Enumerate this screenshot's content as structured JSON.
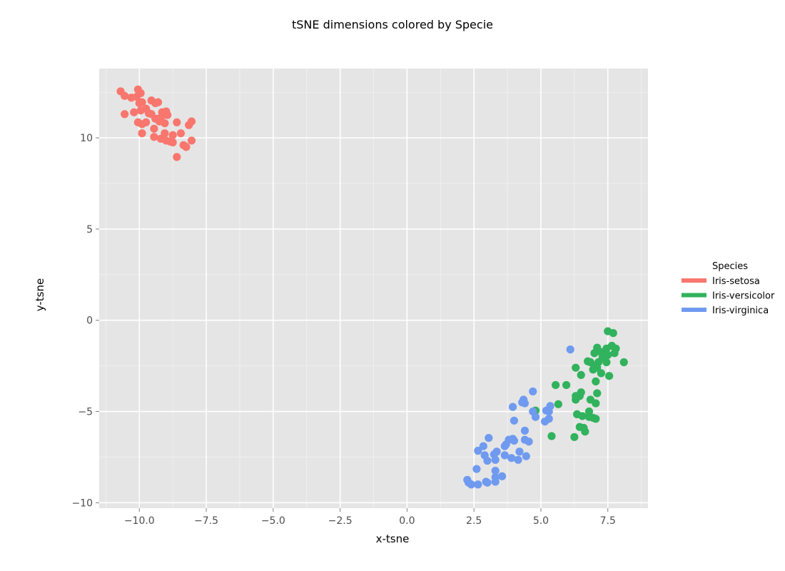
{
  "chart_data": {
    "type": "scatter",
    "title": "tSNE dimensions colored by Specie",
    "xlabel": "x-tsne",
    "ylabel": "y-tsne",
    "xlim": [
      -11.5,
      9.0
    ],
    "ylim": [
      -10.3,
      13.8
    ],
    "x_ticks": [
      -10.0,
      -7.5,
      -5.0,
      -2.5,
      0.0,
      2.5,
      5.0,
      7.5
    ],
    "x_tick_labels": [
      "−10.0",
      "−7.5",
      "−5.0",
      "−2.5",
      "0.0",
      "2.5",
      "5.0",
      "7.5"
    ],
    "y_ticks": [
      -10,
      -5,
      0,
      5,
      10
    ],
    "y_tick_labels": [
      "−10",
      "−5",
      "0",
      "5",
      "10"
    ],
    "grid": true,
    "legend": {
      "title": "Species",
      "position": "right"
    },
    "series": [
      {
        "name": "Iris-setosa",
        "color": "#f8766d",
        "points": [
          [
            -10.7,
            12.55
          ],
          [
            -10.55,
            12.3
          ],
          [
            -10.3,
            12.2
          ],
          [
            -10.1,
            12.25
          ],
          [
            -10.05,
            12.65
          ],
          [
            -9.95,
            12.45
          ],
          [
            -9.9,
            11.95
          ],
          [
            -9.75,
            11.6
          ],
          [
            -9.55,
            12.05
          ],
          [
            -9.4,
            11.9
          ],
          [
            -9.3,
            11.95
          ],
          [
            -9.15,
            11.4
          ],
          [
            -9.0,
            11.45
          ],
          [
            -8.95,
            11.25
          ],
          [
            -9.55,
            11.3
          ],
          [
            -9.4,
            11.05
          ],
          [
            -9.25,
            10.9
          ],
          [
            -9.05,
            10.8
          ],
          [
            -8.6,
            10.85
          ],
          [
            -8.05,
            10.9
          ],
          [
            -8.15,
            10.7
          ],
          [
            -10.55,
            11.3
          ],
          [
            -10.2,
            11.4
          ],
          [
            -9.95,
            11.5
          ],
          [
            -10.05,
            10.85
          ],
          [
            -9.9,
            10.75
          ],
          [
            -9.75,
            10.85
          ],
          [
            -9.45,
            10.5
          ],
          [
            -9.05,
            10.25
          ],
          [
            -8.75,
            10.15
          ],
          [
            -8.45,
            10.25
          ],
          [
            -9.9,
            10.25
          ],
          [
            -9.45,
            10.05
          ],
          [
            -9.2,
            9.95
          ],
          [
            -9.0,
            9.85
          ],
          [
            -8.85,
            9.8
          ],
          [
            -8.75,
            9.75
          ],
          [
            -8.35,
            9.6
          ],
          [
            -8.25,
            9.5
          ],
          [
            -8.05,
            9.85
          ],
          [
            -8.6,
            8.95
          ],
          [
            -9.3,
            11.05
          ],
          [
            -9.15,
            11.2
          ],
          [
            -9.65,
            11.35
          ],
          [
            -10.0,
            11.9
          ]
        ]
      },
      {
        "name": "Iris-versicolor",
        "color": "#31b25c",
        "points": [
          [
            7.5,
            -0.6
          ],
          [
            7.7,
            -0.7
          ],
          [
            7.65,
            -1.4
          ],
          [
            7.8,
            -1.55
          ],
          [
            7.75,
            -1.8
          ],
          [
            7.45,
            -1.55
          ],
          [
            7.1,
            -1.5
          ],
          [
            7.25,
            -1.75
          ],
          [
            7.0,
            -1.8
          ],
          [
            7.3,
            -2.05
          ],
          [
            7.15,
            -2.3
          ],
          [
            7.45,
            -2.3
          ],
          [
            7.5,
            -1.9
          ],
          [
            6.85,
            -2.3
          ],
          [
            6.75,
            -2.25
          ],
          [
            7.0,
            -2.5
          ],
          [
            7.1,
            -2.6
          ],
          [
            6.95,
            -2.7
          ],
          [
            7.25,
            -2.9
          ],
          [
            7.55,
            -3.05
          ],
          [
            8.1,
            -2.3
          ],
          [
            6.3,
            -2.6
          ],
          [
            6.5,
            -3.0
          ],
          [
            7.05,
            -3.35
          ],
          [
            5.55,
            -3.55
          ],
          [
            5.95,
            -3.55
          ],
          [
            6.5,
            -3.95
          ],
          [
            6.45,
            -4.15
          ],
          [
            6.3,
            -4.15
          ],
          [
            6.3,
            -4.35
          ],
          [
            6.85,
            -4.35
          ],
          [
            7.05,
            -4.55
          ],
          [
            7.1,
            -4.0
          ],
          [
            5.65,
            -4.6
          ],
          [
            4.8,
            -4.95
          ],
          [
            6.35,
            -5.15
          ],
          [
            6.55,
            -5.25
          ],
          [
            6.8,
            -5.0
          ],
          [
            6.8,
            -5.3
          ],
          [
            6.95,
            -5.35
          ],
          [
            7.05,
            -5.4
          ],
          [
            6.45,
            -5.85
          ],
          [
            6.6,
            -5.9
          ],
          [
            6.65,
            -6.1
          ],
          [
            5.4,
            -6.35
          ],
          [
            6.25,
            -6.4
          ]
        ]
      },
      {
        "name": "Iris-virginica",
        "color": "#6f9af0",
        "points": [
          [
            6.1,
            -1.6
          ],
          [
            4.7,
            -3.9
          ],
          [
            4.35,
            -4.35
          ],
          [
            4.3,
            -4.5
          ],
          [
            4.4,
            -4.55
          ],
          [
            3.95,
            -4.75
          ],
          [
            4.7,
            -5.0
          ],
          [
            4.8,
            -5.3
          ],
          [
            5.35,
            -4.7
          ],
          [
            5.2,
            -4.95
          ],
          [
            5.3,
            -5.0
          ],
          [
            5.15,
            -5.55
          ],
          [
            5.3,
            -5.4
          ],
          [
            4.0,
            -5.5
          ],
          [
            4.4,
            -6.05
          ],
          [
            3.05,
            -6.45
          ],
          [
            3.95,
            -6.5
          ],
          [
            4.0,
            -6.6
          ],
          [
            3.8,
            -6.55
          ],
          [
            3.7,
            -6.8
          ],
          [
            3.65,
            -6.9
          ],
          [
            4.4,
            -6.55
          ],
          [
            4.55,
            -6.65
          ],
          [
            2.85,
            -6.9
          ],
          [
            2.65,
            -7.15
          ],
          [
            3.35,
            -7.2
          ],
          [
            3.25,
            -7.35
          ],
          [
            2.9,
            -7.4
          ],
          [
            3.0,
            -7.7
          ],
          [
            3.3,
            -7.65
          ],
          [
            3.9,
            -7.55
          ],
          [
            4.15,
            -7.65
          ],
          [
            4.2,
            -7.2
          ],
          [
            4.45,
            -7.45
          ],
          [
            3.65,
            -7.4
          ],
          [
            3.3,
            -8.25
          ],
          [
            2.6,
            -8.15
          ],
          [
            3.3,
            -8.6
          ],
          [
            3.55,
            -8.55
          ],
          [
            2.25,
            -8.75
          ],
          [
            2.3,
            -8.9
          ],
          [
            2.4,
            -9.0
          ],
          [
            2.65,
            -9.0
          ],
          [
            2.95,
            -8.85
          ],
          [
            3.0,
            -8.9
          ],
          [
            3.3,
            -8.85
          ]
        ]
      }
    ]
  }
}
